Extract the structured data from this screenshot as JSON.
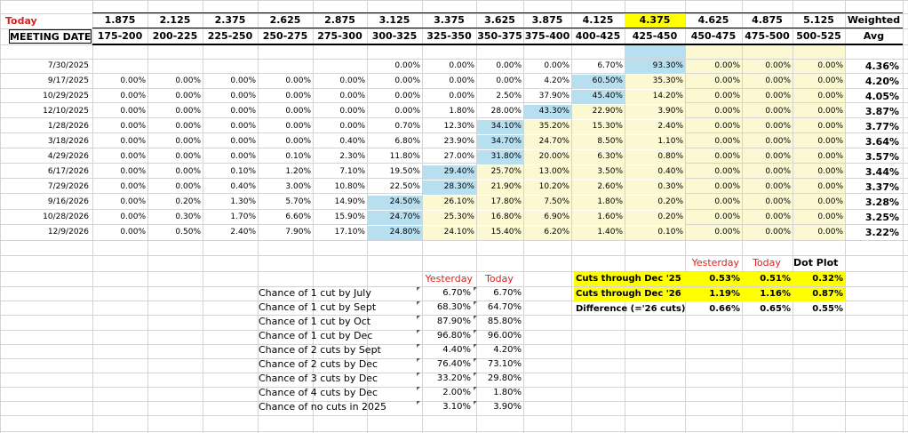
{
  "header": {
    "today_label": "Today",
    "meeting_date_label": "MEETING DATE",
    "weighted_label": "Weighted",
    "avg_label": "Avg",
    "rates": [
      "1.875",
      "2.125",
      "2.375",
      "2.625",
      "2.875",
      "3.125",
      "3.375",
      "3.625",
      "3.875",
      "4.125",
      "4.375",
      "4.625",
      "4.875",
      "5.125"
    ],
    "ranges": [
      "175-200",
      "200-225",
      "225-250",
      "250-275",
      "275-300",
      "300-325",
      "325-350",
      "350-375",
      "375-400",
      "400-425",
      "425-450",
      "450-475",
      "475-500",
      "500-525"
    ],
    "current_rate_index": 10
  },
  "colors": {
    "blue": "#b7dff0",
    "cream": "#fbf8d2",
    "yellow": "#ffff00",
    "red": "#e02020",
    "green_marker": "#1a8a1a"
  },
  "meetings": [
    {
      "date": "7/30/2025",
      "probs": [
        "",
        "",
        "",
        "",
        "",
        "0.00%",
        "0.00%",
        "0.00%",
        "0.00%",
        "6.70%",
        "93.30%",
        "0.00%",
        "0.00%",
        "0.00%"
      ],
      "avg": "4.36%",
      "blue": 10
    },
    {
      "date": "9/17/2025",
      "probs": [
        "0.00%",
        "0.00%",
        "0.00%",
        "0.00%",
        "0.00%",
        "0.00%",
        "0.00%",
        "0.00%",
        "4.20%",
        "60.50%",
        "35.30%",
        "0.00%",
        "0.00%",
        "0.00%"
      ],
      "avg": "4.20%",
      "blue": 9
    },
    {
      "date": "10/29/2025",
      "probs": [
        "0.00%",
        "0.00%",
        "0.00%",
        "0.00%",
        "0.00%",
        "0.00%",
        "0.00%",
        "2.50%",
        "37.90%",
        "45.40%",
        "14.20%",
        "0.00%",
        "0.00%",
        "0.00%"
      ],
      "avg": "4.05%",
      "blue": 9
    },
    {
      "date": "12/10/2025",
      "probs": [
        "0.00%",
        "0.00%",
        "0.00%",
        "0.00%",
        "0.00%",
        "0.00%",
        "1.80%",
        "28.00%",
        "43.30%",
        "22.90%",
        "3.90%",
        "0.00%",
        "0.00%",
        "0.00%"
      ],
      "avg": "3.87%",
      "blue": 8
    },
    {
      "date": "1/28/2026",
      "probs": [
        "0.00%",
        "0.00%",
        "0.00%",
        "0.00%",
        "0.00%",
        "0.70%",
        "12.30%",
        "34.10%",
        "35.20%",
        "15.30%",
        "2.40%",
        "0.00%",
        "0.00%",
        "0.00%"
      ],
      "avg": "3.77%",
      "blue": 7
    },
    {
      "date": "3/18/2026",
      "probs": [
        "0.00%",
        "0.00%",
        "0.00%",
        "0.00%",
        "0.40%",
        "6.80%",
        "23.90%",
        "34.70%",
        "24.70%",
        "8.50%",
        "1.10%",
        "0.00%",
        "0.00%",
        "0.00%"
      ],
      "avg": "3.64%",
      "blue": 7
    },
    {
      "date": "4/29/2026",
      "probs": [
        "0.00%",
        "0.00%",
        "0.00%",
        "0.10%",
        "2.30%",
        "11.80%",
        "27.00%",
        "31.80%",
        "20.00%",
        "6.30%",
        "0.80%",
        "0.00%",
        "0.00%",
        "0.00%"
      ],
      "avg": "3.57%",
      "blue": 7
    },
    {
      "date": "6/17/2026",
      "probs": [
        "0.00%",
        "0.00%",
        "0.10%",
        "1.20%",
        "7.10%",
        "19.50%",
        "29.40%",
        "25.70%",
        "13.00%",
        "3.50%",
        "0.40%",
        "0.00%",
        "0.00%",
        "0.00%"
      ],
      "avg": "3.44%",
      "blue": 6
    },
    {
      "date": "7/29/2026",
      "probs": [
        "0.00%",
        "0.00%",
        "0.40%",
        "3.00%",
        "10.80%",
        "22.50%",
        "28.30%",
        "21.90%",
        "10.20%",
        "2.60%",
        "0.30%",
        "0.00%",
        "0.00%",
        "0.00%"
      ],
      "avg": "3.37%",
      "blue": 6
    },
    {
      "date": "9/16/2026",
      "probs": [
        "0.00%",
        "0.20%",
        "1.30%",
        "5.70%",
        "14.90%",
        "24.50%",
        "26.10%",
        "17.80%",
        "7.50%",
        "1.80%",
        "0.20%",
        "0.00%",
        "0.00%",
        "0.00%"
      ],
      "avg": "3.28%",
      "blue": 5
    },
    {
      "date": "10/28/2026",
      "probs": [
        "0.00%",
        "0.30%",
        "1.70%",
        "6.60%",
        "15.90%",
        "24.70%",
        "25.30%",
        "16.80%",
        "6.90%",
        "1.60%",
        "0.20%",
        "0.00%",
        "0.00%",
        "0.00%"
      ],
      "avg": "3.25%",
      "blue": 5
    },
    {
      "date": "12/9/2026",
      "probs": [
        "0.00%",
        "0.50%",
        "2.40%",
        "7.90%",
        "17.10%",
        "24.80%",
        "24.10%",
        "15.40%",
        "6.20%",
        "1.40%",
        "0.10%",
        "0.00%",
        "0.00%",
        "0.00%"
      ],
      "avg": "3.22%",
      "blue": 5
    }
  ],
  "chance_table": {
    "yesterday_label": "Yesterday",
    "today_label": "Today",
    "rows": [
      {
        "label": "Chance of 1 cut by July",
        "yesterday": "6.70%",
        "today": "6.70%"
      },
      {
        "label": "Chance of 1 cut by Sept",
        "yesterday": "68.30%",
        "today": "64.70%"
      },
      {
        "label": "Chance of 1 cut by Oct",
        "yesterday": "87.90%",
        "today": "85.80%"
      },
      {
        "label": "Chance of 1 cut by Dec",
        "yesterday": "96.80%",
        "today": "96.00%"
      },
      {
        "label": "Chance of 2 cuts by Sept",
        "yesterday": "4.40%",
        "today": "4.20%"
      },
      {
        "label": "Chance of 2 cuts by Dec",
        "yesterday": "76.40%",
        "today": "73.10%"
      },
      {
        "label": "Chance of 3 cuts by Dec",
        "yesterday": "33.20%",
        "today": "29.80%"
      },
      {
        "label": "Chance of 4 cuts by Dec",
        "yesterday": "2.00%",
        "today": "1.80%"
      },
      {
        "label": "Chance of no cuts in 2025",
        "yesterday": "3.10%",
        "today": "3.90%"
      }
    ]
  },
  "cuts_table": {
    "yesterday_label": "Yesterday",
    "today_label": "Today",
    "dotplot_label": "Dot Plot",
    "rows": [
      {
        "label": "Cuts through Dec '25",
        "yesterday": "0.53%",
        "today": "0.51%",
        "dotplot": "0.32%",
        "highlight": true
      },
      {
        "label": "Cuts through Dec '26",
        "yesterday": "1.19%",
        "today": "1.16%",
        "dotplot": "0.87%",
        "highlight": true
      },
      {
        "label": "Difference (='26 cuts)",
        "yesterday": "0.66%",
        "today": "0.65%",
        "dotplot": "0.55%",
        "highlight": false
      }
    ]
  }
}
